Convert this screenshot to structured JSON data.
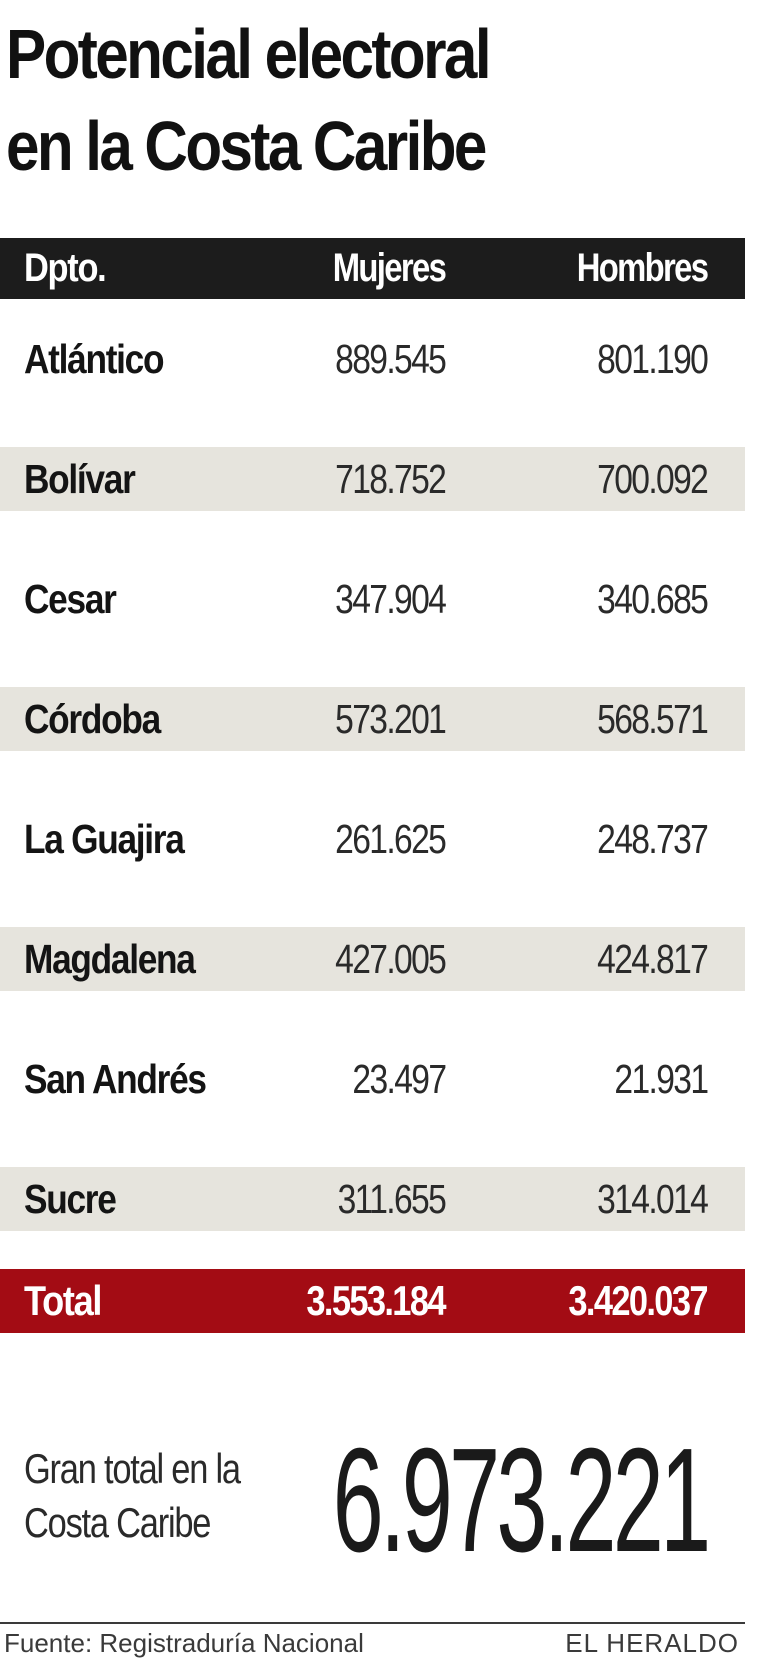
{
  "title": {
    "line1": "Potencial electoral",
    "line2": "en la Costa Caribe"
  },
  "chart_data": {
    "type": "table",
    "columns": [
      "Dpto.",
      "Mujeres",
      "Hombres"
    ],
    "rows": [
      {
        "dpto": "Atlántico",
        "mujeres": "889.545",
        "hombres": "801.190"
      },
      {
        "dpto": "Bolívar",
        "mujeres": "718.752",
        "hombres": "700.092"
      },
      {
        "dpto": "Cesar",
        "mujeres": "347.904",
        "hombres": "340.685"
      },
      {
        "dpto": "Córdoba",
        "mujeres": "573.201",
        "hombres": "568.571"
      },
      {
        "dpto": "La Guajira",
        "mujeres": "261.625",
        "hombres": "248.737"
      },
      {
        "dpto": "Magdalena",
        "mujeres": "427.005",
        "hombres": "424.817"
      },
      {
        "dpto": "San Andrés",
        "mujeres": "23.497",
        "hombres": "21.931"
      },
      {
        "dpto": "Sucre",
        "mujeres": "311.655",
        "hombres": "314.014"
      }
    ],
    "total": {
      "label": "Total",
      "mujeres": "3.553.184",
      "hombres": "3.420.037"
    }
  },
  "grand_total": {
    "label_line1": "Gran total en la",
    "label_line2": "Costa Caribe",
    "value": "6.973.221"
  },
  "footer": {
    "source": "Fuente: Registraduría Nacional",
    "brand": "EL HERALDO"
  },
  "colors": {
    "header_bg": "#1c1c1c",
    "stripe_bg": "#e6e4dd",
    "total_bg": "#a30c14"
  }
}
